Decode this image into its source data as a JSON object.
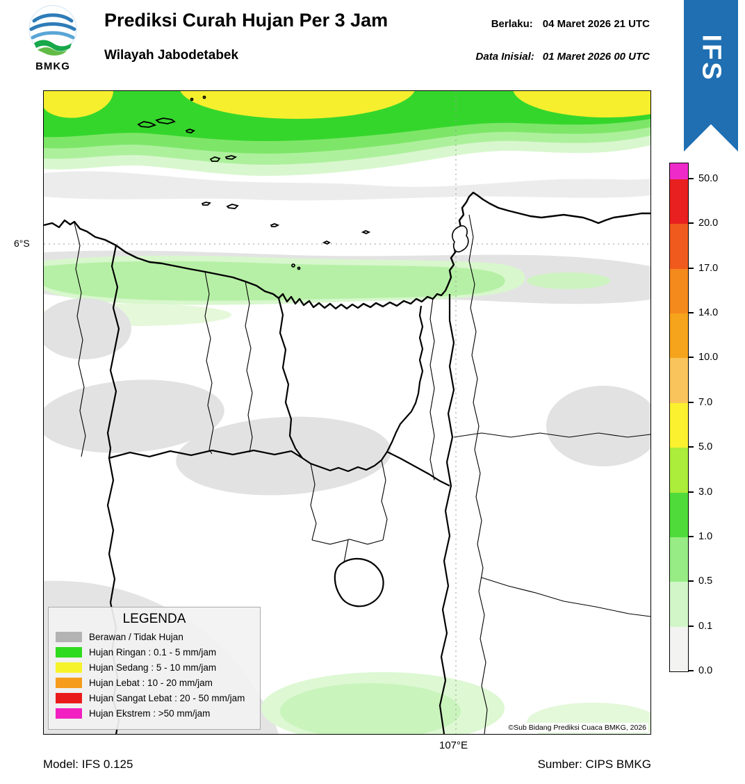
{
  "header": {
    "logo_caption": "BMKG",
    "title": "Prediksi Curah Hujan Per 3 Jam",
    "subtitle": "Wilayah Jabodetabek",
    "valid_label": "Berlaku:",
    "valid_value": "04 Maret 2026 21 UTC",
    "initial_label": "Data Inisial:",
    "initial_value": "01 Maret 2026 00 UTC",
    "model_ribbon": "IFS"
  },
  "map": {
    "lat_tick": "6°S",
    "lon_tick": "107°E",
    "copyright": "©Sub Bidang Prediksi Cuaca BMKG, 2026"
  },
  "legend": {
    "title": "LEGENDA",
    "items": [
      {
        "label": "Berawan / Tidak Hujan",
        "color": "#b3b3b3"
      },
      {
        "label": "Hujan Ringan : 0.1 - 5 mm/jam",
        "color": "#2fdb1f"
      },
      {
        "label": "Hujan Sedang : 5 - 10 mm/jam",
        "color": "#f7f32b"
      },
      {
        "label": "Hujan Lebat : 10 - 20 mm/jam",
        "color": "#f59c1c"
      },
      {
        "label": "Hujan Sangat Lebat : 20 - 50 mm/jam",
        "color": "#ea1b1b"
      },
      {
        "label": "Hujan Ekstrem : >50 mm/jam",
        "color": "#f220c0"
      }
    ]
  },
  "colorbar": {
    "segments": [
      {
        "color": "#ee2bc9"
      },
      {
        "color": "#e8201f"
      },
      {
        "color": "#f05a1d"
      },
      {
        "color": "#f4891c"
      },
      {
        "color": "#f6a41b"
      },
      {
        "color": "#f9c45c"
      },
      {
        "color": "#fcf12f"
      },
      {
        "color": "#acec3a"
      },
      {
        "color": "#4fdc3a"
      },
      {
        "color": "#97ec85"
      },
      {
        "color": "#d3f6c9"
      },
      {
        "color": "#f3f3f1"
      }
    ],
    "ticks": [
      "50.0",
      "20.0",
      "17.0",
      "14.0",
      "10.0",
      "7.0",
      "5.0",
      "3.0",
      "1.0",
      "0.5",
      "0.1",
      "0.0"
    ]
  },
  "footer": {
    "model": "Model: IFS 0.125",
    "source": "Sumber: CIPS BMKG"
  }
}
